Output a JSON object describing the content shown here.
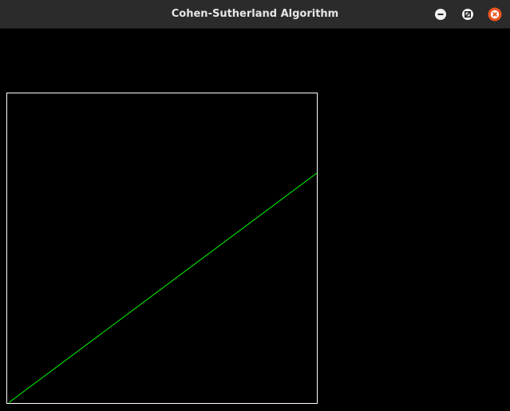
{
  "window": {
    "title": "Cohen-Sutherland Algorithm",
    "controls": {
      "minimize": "minimize-icon",
      "maximize": "maximize-icon",
      "close": "close-icon"
    }
  },
  "colors": {
    "titlebar": "#2b2b2b",
    "title_text": "#e6e6e6",
    "canvas_background": "#000000",
    "clip_window_border": "#ffffff",
    "clipped_line": "#00ff00",
    "close_button": "#e95420"
  }
}
